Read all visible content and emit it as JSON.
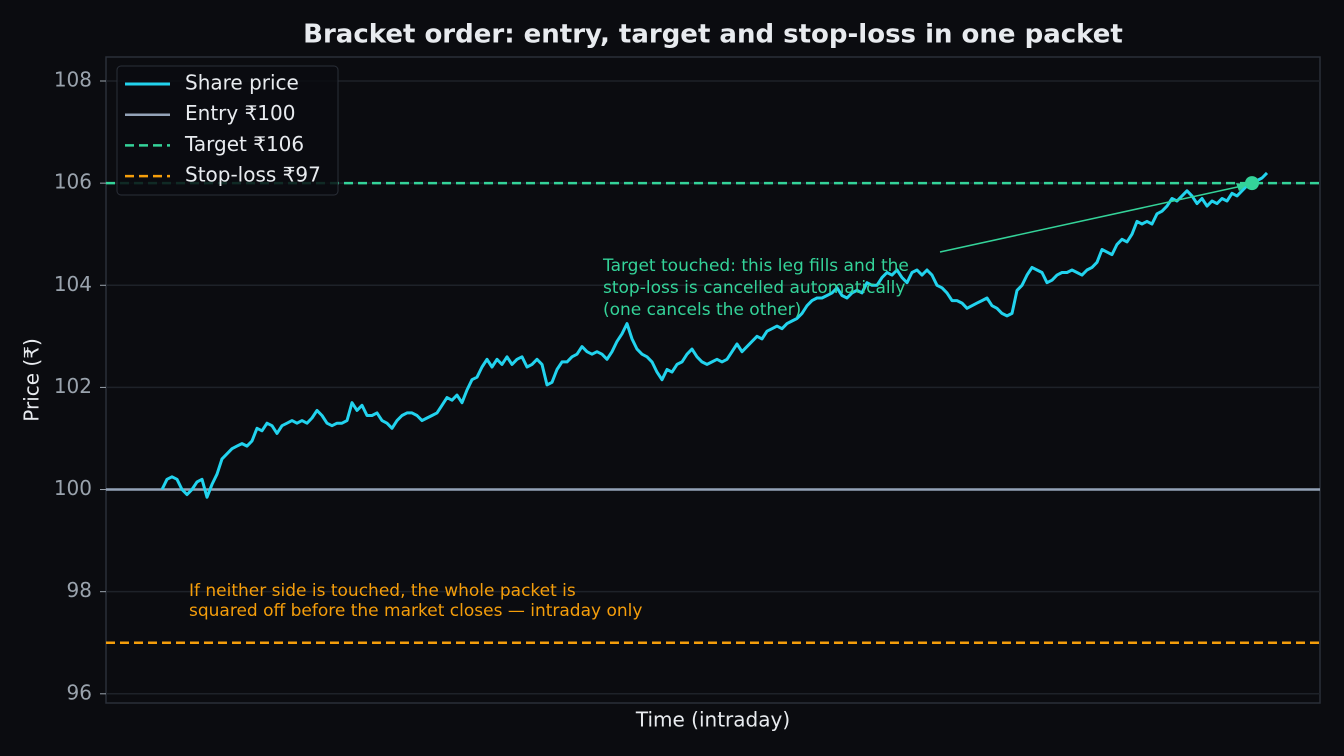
{
  "chart_data": {
    "type": "line",
    "title": "Bracket order: entry, target and stop-loss in one packet",
    "xlabel": "Time (intraday)",
    "ylabel": "Price (₹)",
    "ylim": [
      95.82,
      108.47
    ],
    "yticks": [
      96,
      98,
      100,
      102,
      104,
      106,
      108
    ],
    "grid": true,
    "legend": "upper left",
    "series": [
      {
        "name": "Share price",
        "color": "#22d3ee",
        "values": [
          100.0,
          100.2,
          100.25,
          100.2,
          100.0,
          99.9,
          100.0,
          100.15,
          100.2,
          99.85,
          100.1,
          100.3,
          100.6,
          100.7,
          100.8,
          100.85,
          100.9,
          100.85,
          100.95,
          101.2,
          101.15,
          101.3,
          101.25,
          101.1,
          101.25,
          101.3,
          101.35,
          101.3,
          101.35,
          101.3,
          101.4,
          101.55,
          101.45,
          101.3,
          101.25,
          101.3,
          101.3,
          101.35,
          101.7,
          101.55,
          101.65,
          101.45,
          101.45,
          101.5,
          101.35,
          101.3,
          101.2,
          101.35,
          101.45,
          101.5,
          101.5,
          101.45,
          101.35,
          101.4,
          101.45,
          101.5,
          101.65,
          101.8,
          101.75,
          101.85,
          101.7,
          101.95,
          102.15,
          102.2,
          102.4,
          102.55,
          102.4,
          102.55,
          102.45,
          102.6,
          102.45,
          102.55,
          102.6,
          102.4,
          102.45,
          102.55,
          102.45,
          102.05,
          102.1,
          102.35,
          102.5,
          102.5,
          102.6,
          102.65,
          102.8,
          102.7,
          102.65,
          102.7,
          102.65,
          102.55,
          102.7,
          102.9,
          103.05,
          103.25,
          102.95,
          102.75,
          102.65,
          102.6,
          102.5,
          102.3,
          102.15,
          102.35,
          102.3,
          102.45,
          102.5,
          102.65,
          102.75,
          102.6,
          102.5,
          102.45,
          102.5,
          102.55,
          102.5,
          102.55,
          102.7,
          102.85,
          102.7,
          102.8,
          102.9,
          103.0,
          102.95,
          103.1,
          103.15,
          103.2,
          103.15,
          103.25,
          103.3,
          103.35,
          103.45,
          103.6,
          103.7,
          103.75,
          103.75,
          103.8,
          103.85,
          103.95,
          103.8,
          103.75,
          103.85,
          103.9,
          103.85,
          104.05,
          104.0,
          104.0,
          104.15,
          104.25,
          104.2,
          104.3,
          104.15,
          104.05,
          104.25,
          104.3,
          104.2,
          104.3,
          104.2,
          104.0,
          103.95,
          103.85,
          103.7,
          103.7,
          103.65,
          103.55,
          103.6,
          103.65,
          103.7,
          103.75,
          103.6,
          103.55,
          103.45,
          103.4,
          103.45,
          103.9,
          104.0,
          104.2,
          104.35,
          104.3,
          104.25,
          104.05,
          104.1,
          104.2,
          104.25,
          104.25,
          104.3,
          104.25,
          104.2,
          104.3,
          104.35,
          104.45,
          104.7,
          104.65,
          104.6,
          104.8,
          104.9,
          104.85,
          105.0,
          105.25,
          105.2,
          105.25,
          105.2,
          105.4,
          105.45,
          105.55,
          105.7,
          105.65,
          105.75,
          105.85,
          105.75,
          105.6,
          105.7,
          105.55,
          105.65,
          105.6,
          105.7,
          105.65,
          105.8,
          105.75,
          105.85,
          105.95,
          106.0,
          106.05,
          106.1,
          106.2
        ]
      }
    ],
    "hlines": [
      {
        "name": "Entry ₹100",
        "value": 100,
        "color": "#94a3b8",
        "dash": false
      },
      {
        "name": "Target ₹106",
        "value": 106,
        "color": "#34d399",
        "dash": true
      },
      {
        "name": "Stop-loss ₹97",
        "value": 97,
        "color": "#f59e0b",
        "dash": true
      }
    ],
    "annotations": [
      {
        "lines": [
          "Target touched: this leg fills and the",
          "stop-loss is cancelled automatically",
          "(one cancels the other)"
        ],
        "color": "#34d399"
      },
      {
        "lines": [
          "If neither side is touched, the whole packet is",
          "squared off before the market closes — intraday only"
        ],
        "color": "#f59e0b"
      }
    ]
  }
}
